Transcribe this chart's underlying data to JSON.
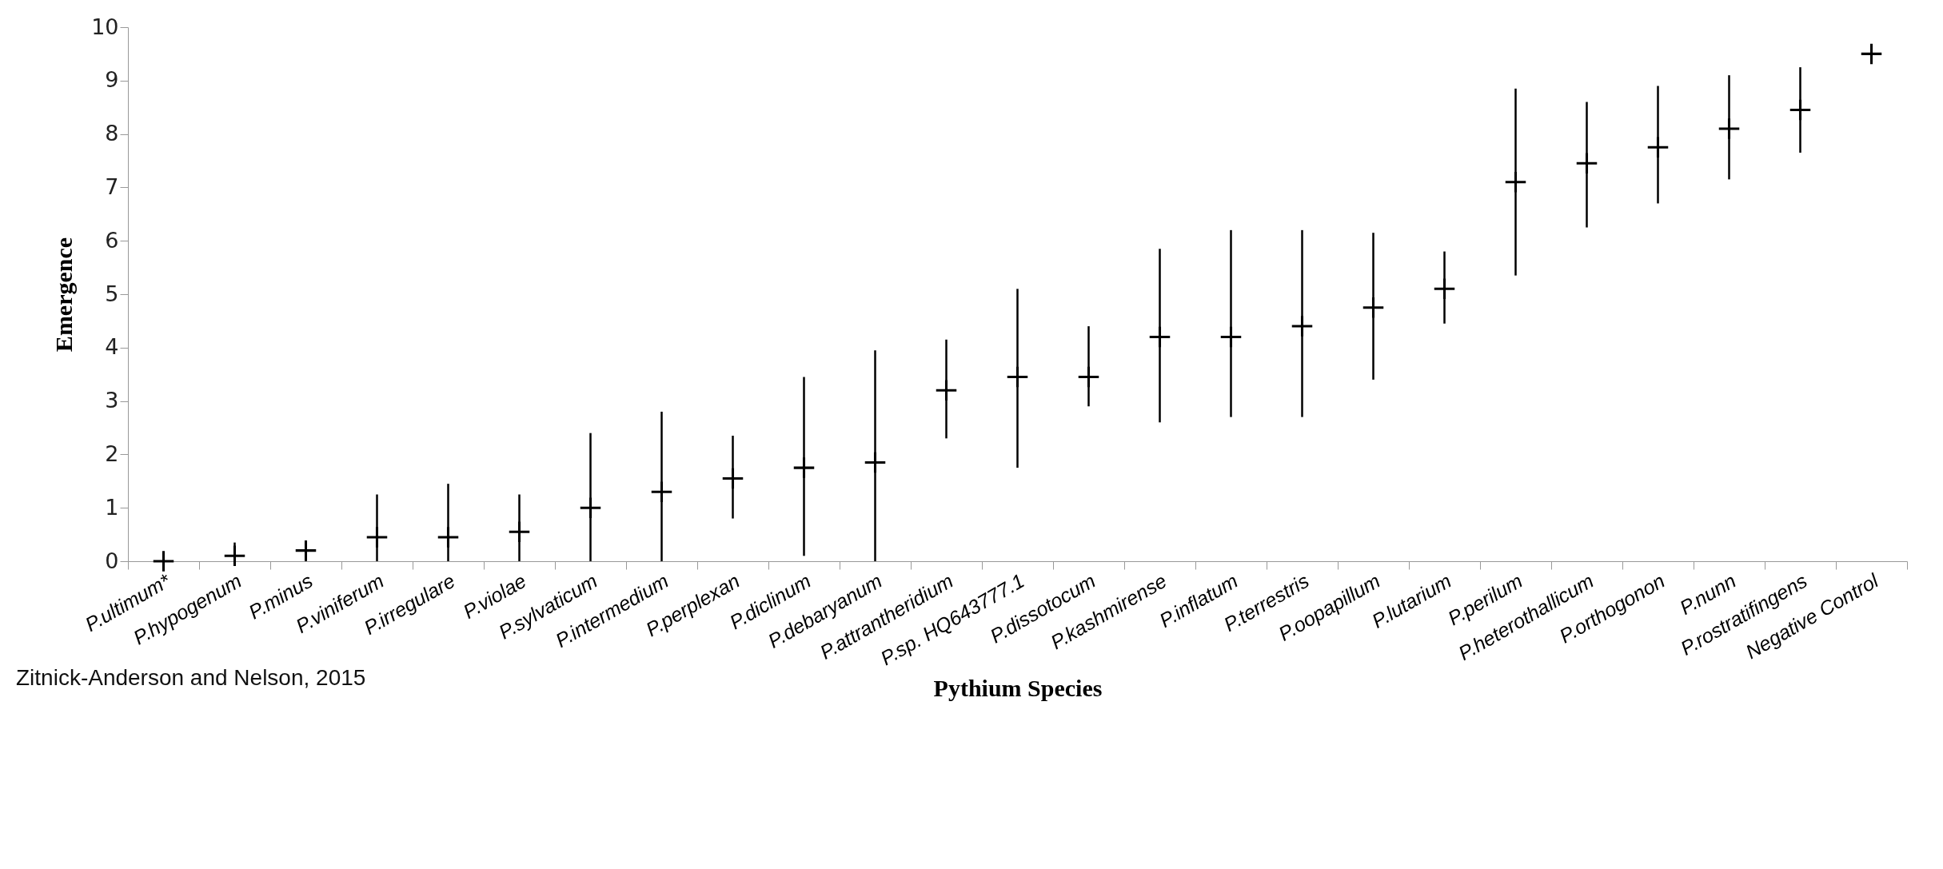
{
  "chart_data": {
    "type": "scatter",
    "xlabel": "Pythium Species",
    "ylabel": "Emergence",
    "annotations": [
      "Zitnick-Anderson and Nelson, 2015"
    ],
    "categories": [
      "P.ultimum*",
      "P.hypogenum",
      "P.minus",
      "P.viniferum",
      "P.irregulare",
      "P.violae",
      "P.sylvaticum",
      "P.intermedium",
      "P.perplexan",
      "P.diclinum",
      "P.debaryanum",
      "P.attrantheridium",
      "P.sp. HQ643777.1",
      "P.dissotocum",
      "P.kashmirense",
      "P.inflatum",
      "P.terrestris",
      "P.oopapillum",
      "P.lutarium",
      "P.perilum",
      "P.heterothallicum",
      "P.orthogonon",
      "P.nunn",
      "P.rostratifingens",
      "Negative Control"
    ],
    "series": [
      {
        "color": "#000000",
        "values": [
          0,
          0.1,
          0.2,
          0.45,
          0.45,
          0.55,
          1.0,
          1.3,
          1.55,
          1.75,
          1.85,
          3.2,
          3.45,
          3.45,
          4.2,
          4.2,
          4.4,
          4.75,
          5.1,
          7.1,
          7.45,
          7.75,
          8.1,
          8.45,
          9.5
        ],
        "errors": [
          null,
          [
            0,
            0.35
          ],
          [
            0,
            0.25
          ],
          [
            0,
            1.25
          ],
          [
            0,
            1.45
          ],
          [
            0,
            1.25
          ],
          [
            0,
            2.4
          ],
          [
            0,
            2.8
          ],
          [
            0.8,
            2.35
          ],
          [
            0.1,
            3.45
          ],
          [
            0,
            3.95
          ],
          [
            2.3,
            4.15
          ],
          [
            1.75,
            5.1
          ],
          [
            2.9,
            4.4
          ],
          [
            2.6,
            5.85
          ],
          [
            2.7,
            6.2
          ],
          [
            2.7,
            6.2
          ],
          [
            3.4,
            6.15
          ],
          [
            4.45,
            5.8
          ],
          [
            5.35,
            8.85
          ],
          [
            6.25,
            8.6
          ],
          [
            6.7,
            8.9
          ],
          [
            7.15,
            9.1
          ],
          [
            7.65,
            9.25
          ],
          null
        ]
      }
    ],
    "marker": "cross",
    "ylim": [
      0,
      10
    ],
    "yticks": [
      0,
      1,
      2,
      3,
      4,
      5,
      6,
      7,
      8,
      9,
      10
    ],
    "grid": false
  }
}
